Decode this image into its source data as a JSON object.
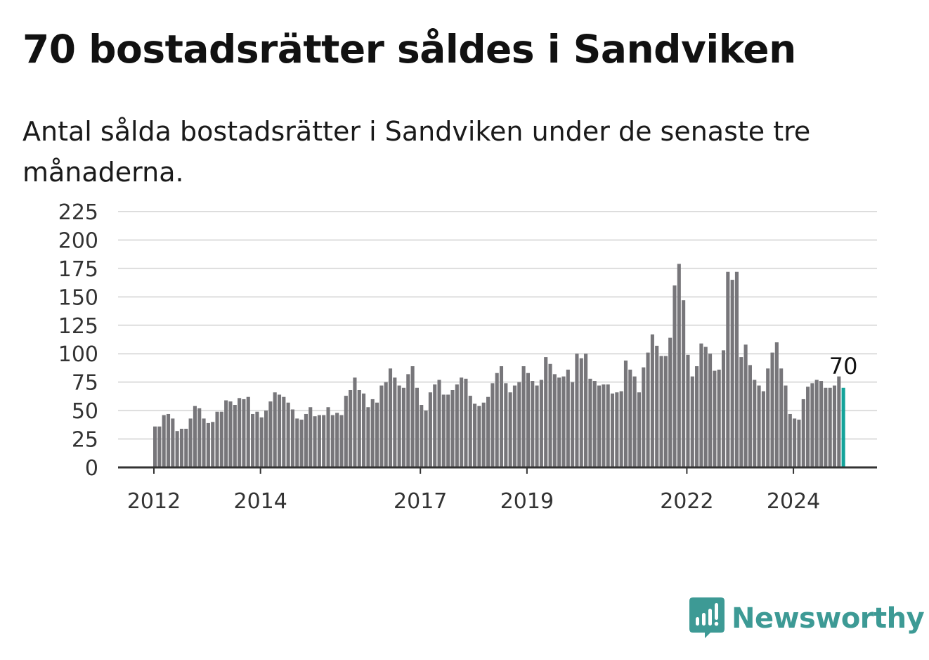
{
  "header": {
    "title": "70 bostadsrätter såldes i Sandviken",
    "subtitle": "Antal sålda bostadsrätter i Sandviken under de senaste tre månaderna."
  },
  "brand": {
    "name": "Newsworthy",
    "color": "#3d9a95"
  },
  "colors": {
    "bar": "#77767a",
    "highlight": "#13a39a",
    "grid": "#dddddd",
    "axis": "#333333"
  },
  "chart_data": {
    "type": "bar",
    "start": "2012-01",
    "values": [
      36,
      36,
      46,
      47,
      43,
      32,
      34,
      34,
      43,
      54,
      52,
      43,
      39,
      40,
      49,
      49,
      59,
      58,
      55,
      61,
      60,
      62,
      47,
      49,
      44,
      50,
      58,
      66,
      64,
      62,
      57,
      51,
      43,
      42,
      47,
      53,
      45,
      46,
      46,
      53,
      46,
      48,
      46,
      63,
      68,
      79,
      68,
      65,
      53,
      60,
      57,
      72,
      75,
      87,
      79,
      72,
      70,
      82,
      89,
      70,
      55,
      50,
      66,
      73,
      77,
      64,
      64,
      68,
      73,
      79,
      78,
      63,
      56,
      54,
      57,
      62,
      74,
      83,
      89,
      74,
      66,
      72,
      75,
      89,
      83,
      76,
      72,
      77,
      97,
      91,
      82,
      79,
      80,
      86,
      75,
      100,
      96,
      100,
      78,
      76,
      72,
      73,
      73,
      65,
      66,
      67,
      94,
      86,
      80,
      66,
      88,
      101,
      117,
      107,
      98,
      98,
      114,
      160,
      179,
      147,
      99,
      80,
      89,
      109,
      106,
      100,
      85,
      86,
      103,
      172,
      165,
      172,
      97,
      108,
      90,
      77,
      72,
      67,
      87,
      101,
      110,
      87,
      72,
      47,
      43,
      42,
      60,
      71,
      74,
      77,
      76,
      70,
      70,
      72,
      80,
      70
    ],
    "highlight_last": true,
    "last_label": "70",
    "yticks": [
      "0",
      "25",
      "50",
      "75",
      "100",
      "125",
      "150",
      "175",
      "200",
      "225"
    ],
    "ylim": [
      0,
      225
    ],
    "xtick_labels": [
      {
        "label": "2012",
        "index": 0
      },
      {
        "label": "2014",
        "index": 24
      },
      {
        "label": "2017",
        "index": 60
      },
      {
        "label": "2019",
        "index": 84
      },
      {
        "label": "2022",
        "index": 120
      },
      {
        "label": "2024",
        "index": 144
      }
    ],
    "grid": true,
    "xlabel": "",
    "ylabel": ""
  }
}
